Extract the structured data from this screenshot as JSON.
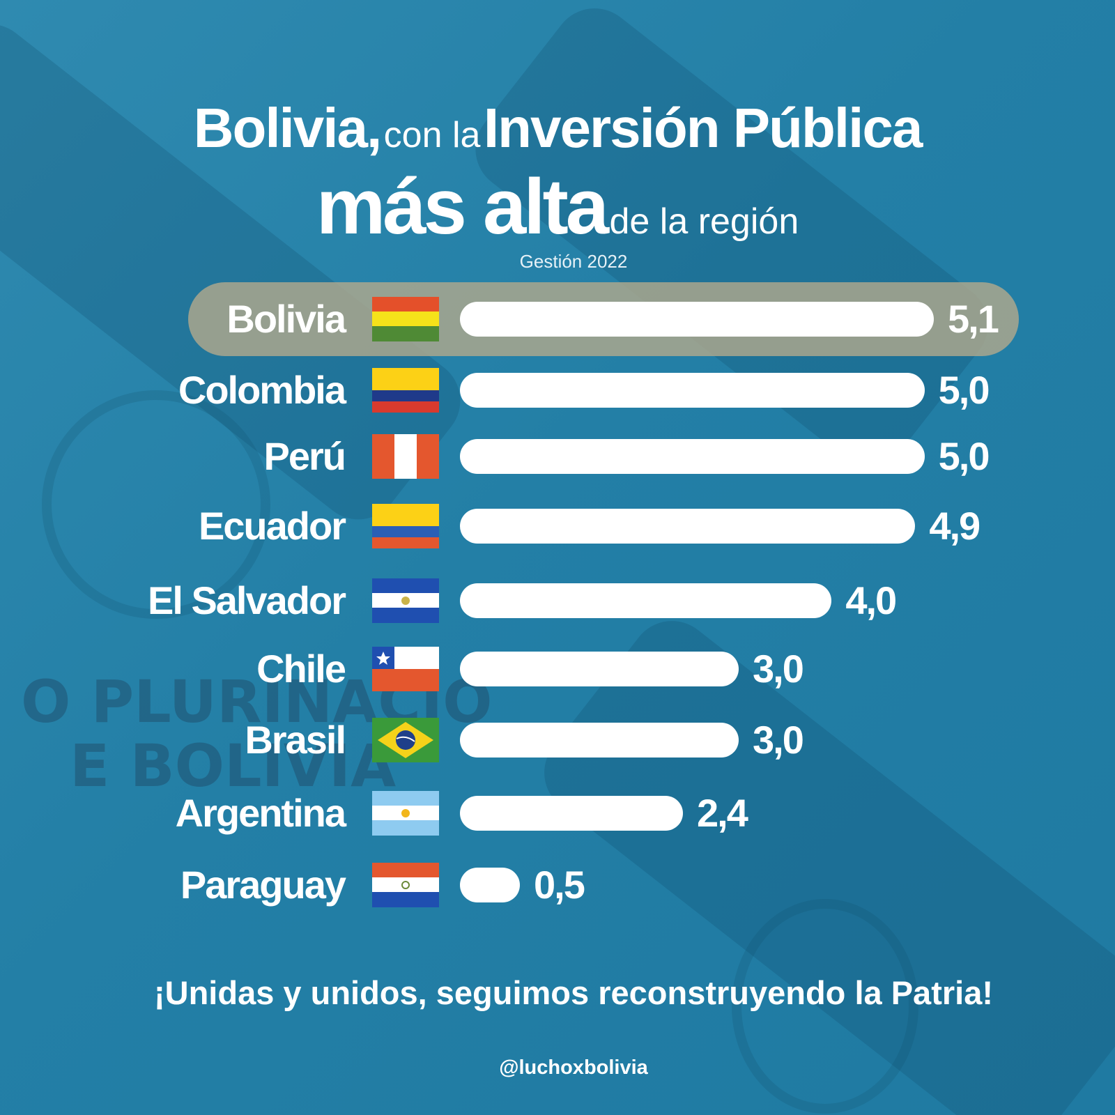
{
  "title": {
    "line1_country": "Bolivia,",
    "line1_connector": "con la",
    "line1_topic": "Inversión Pública",
    "line2_emphasis": "más alta",
    "line2_rest": "de la región"
  },
  "subtitle": "Gestión 2022",
  "background_text": {
    "line1": "O PLURINACIO",
    "line2": "E BOLIVIA"
  },
  "chart_data": {
    "type": "bar",
    "orientation": "horizontal",
    "title": "Bolivia, con la Inversión Pública más alta de la región",
    "subtitle": "Gestión 2022",
    "categories": [
      "Bolivia",
      "Colombia",
      "Perú",
      "Ecuador",
      "El Salvador",
      "Chile",
      "Brasil",
      "Argentina",
      "Paraguay"
    ],
    "values": [
      5.1,
      5.0,
      5.0,
      4.9,
      4.0,
      3.0,
      3.0,
      2.4,
      0.5
    ],
    "value_labels": [
      "5,1",
      "5,0",
      "5,0",
      "4,9",
      "4,0",
      "3,0",
      "3,0",
      "2,4",
      "0,5"
    ],
    "highlight": "Bolivia",
    "flags": [
      "bolivia-flag-icon",
      "colombia-flag-icon",
      "peru-flag-icon",
      "ecuador-flag-icon",
      "el-salvador-flag-icon",
      "chile-flag-icon",
      "brasil-flag-icon",
      "argentina-flag-icon",
      "paraguay-flag-icon"
    ],
    "xlim": [
      0,
      5.1
    ],
    "bar_color": "#ffffff",
    "highlight_color": "#b0a88c"
  },
  "slogan": "¡Unidas y unidos, seguimos reconstruyendo la Patria!",
  "handle": "@luchoxbolivia",
  "colors": {
    "background": "#237fa6",
    "text": "#ffffff"
  }
}
